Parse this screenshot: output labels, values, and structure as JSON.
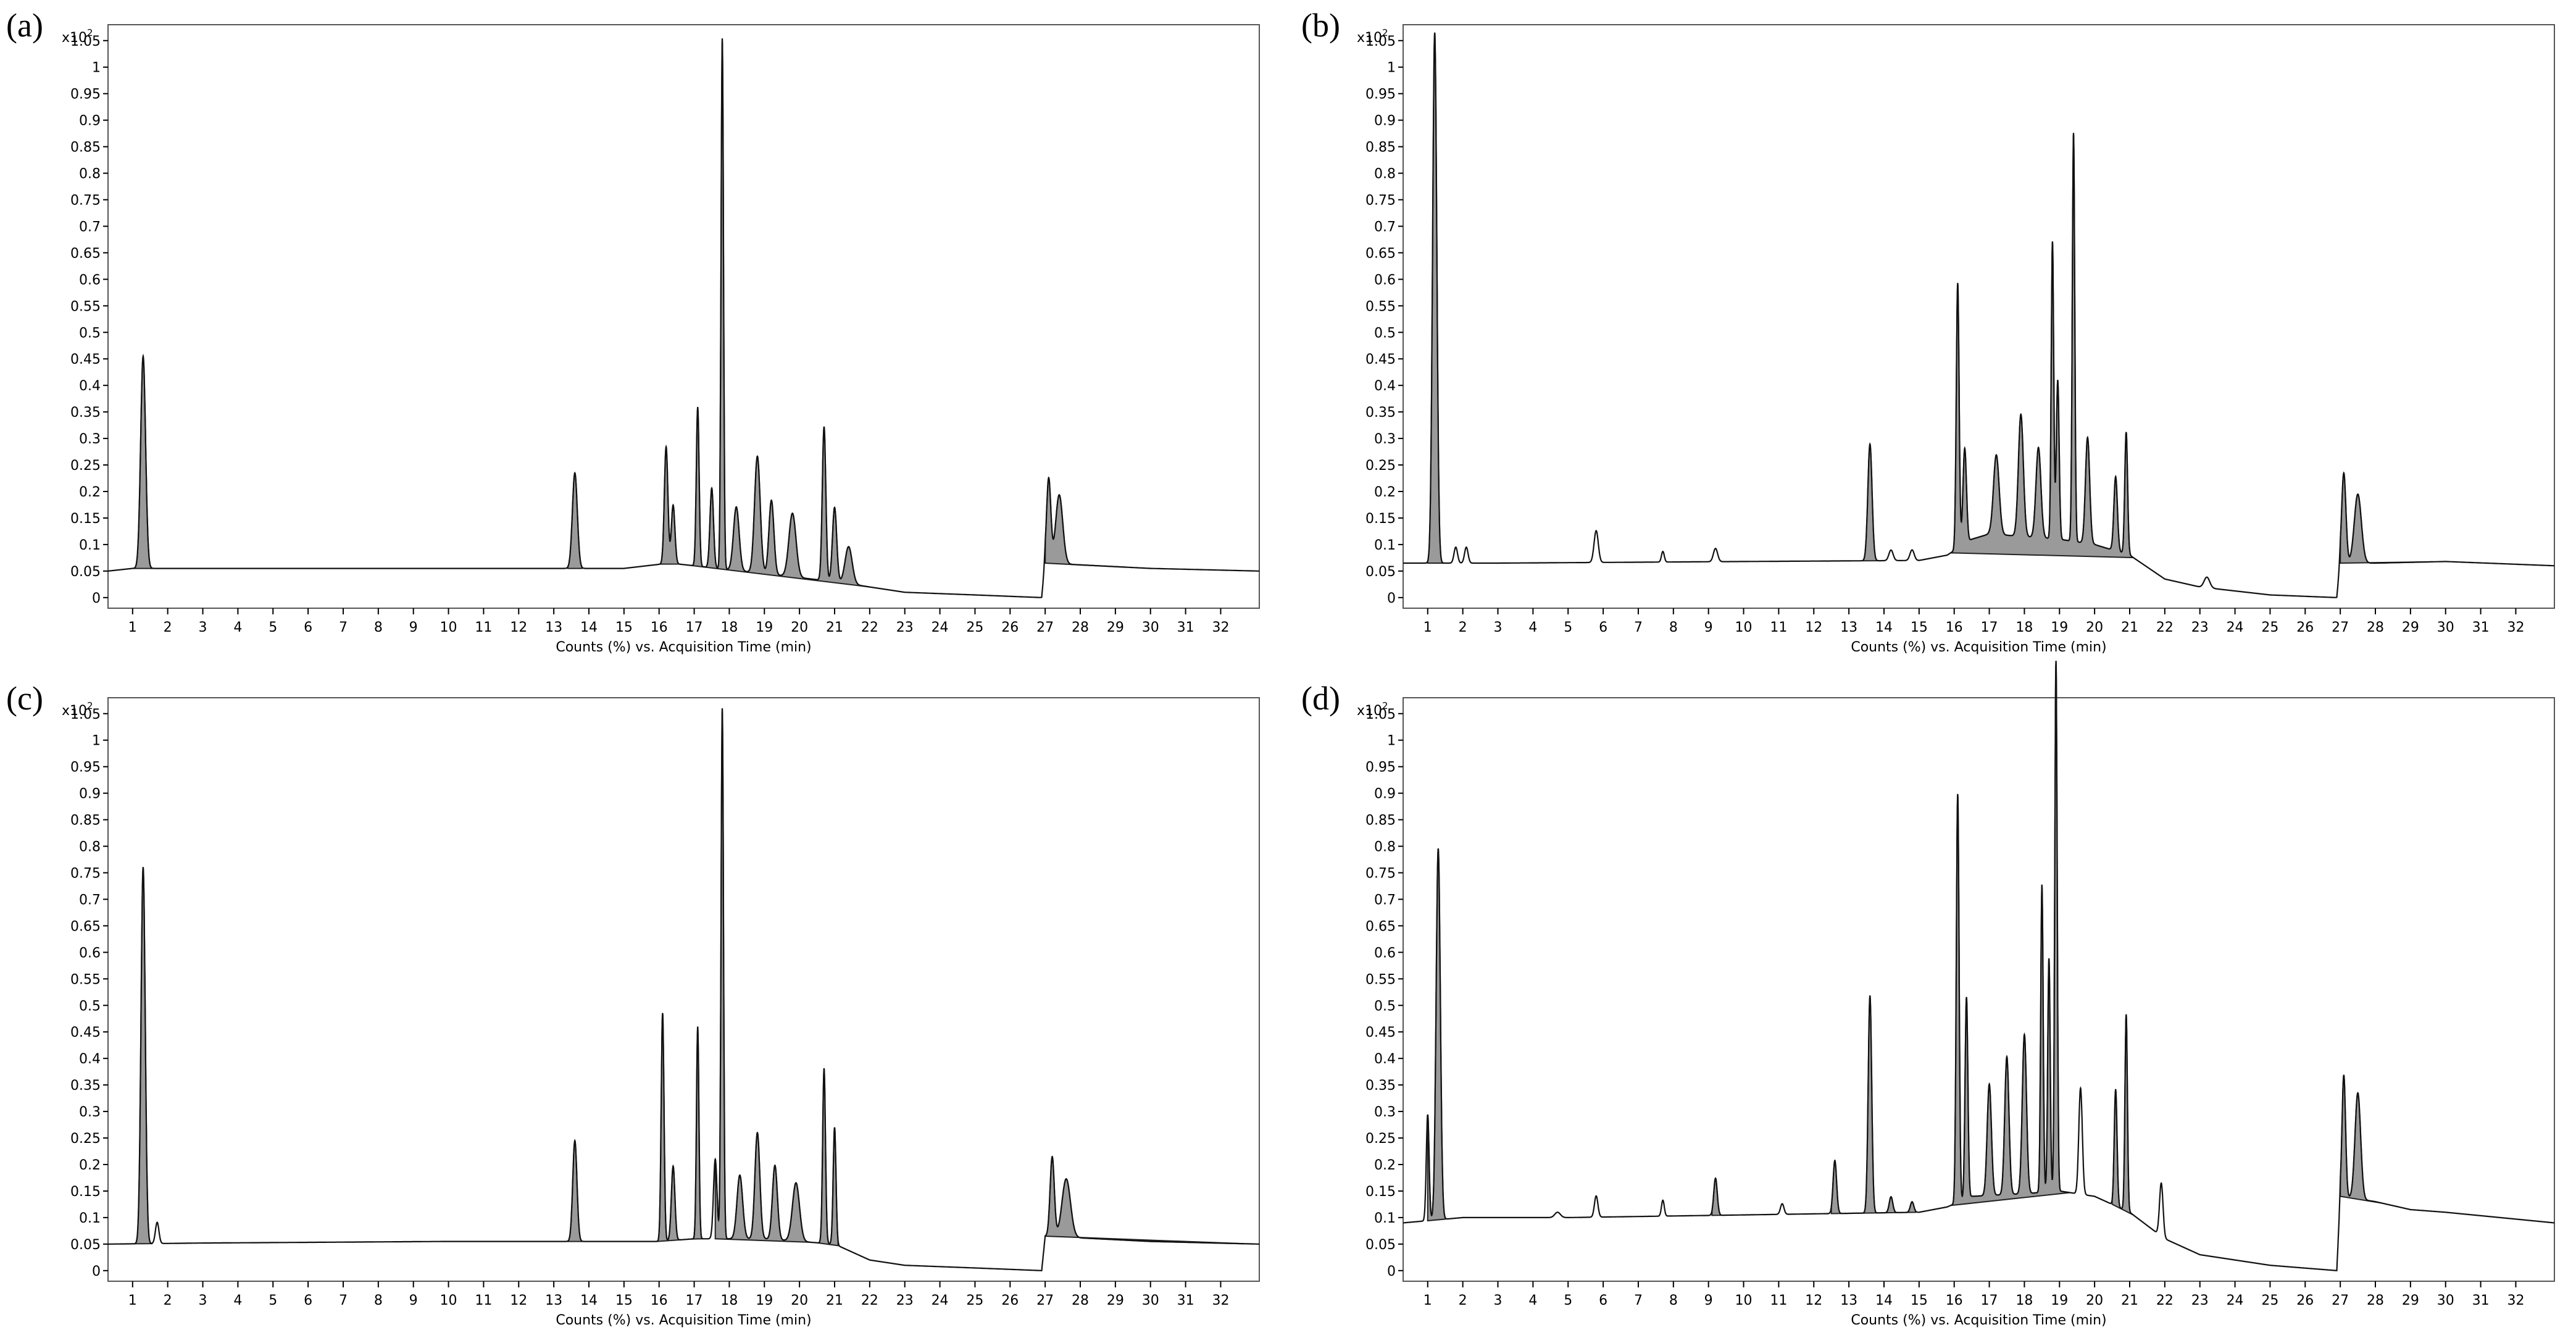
{
  "chart_data": [
    {
      "type": "area",
      "panel_label": "(a)",
      "y_multiplier": "x10",
      "y_multiplier_exp": "2",
      "xlabel": "Counts (%) vs. Acquisition Time (min)",
      "ylabel": "",
      "xlim": [
        0.3,
        33.1
      ],
      "ylim": [
        -0.02,
        1.08
      ],
      "x_ticks": [
        1,
        2,
        3,
        4,
        5,
        6,
        7,
        8,
        9,
        10,
        11,
        12,
        13,
        14,
        15,
        16,
        17,
        18,
        19,
        20,
        21,
        22,
        23,
        24,
        25,
        26,
        27,
        28,
        29,
        30,
        31,
        32
      ],
      "y_ticks": [
        "0",
        "0.05",
        "0.1",
        "0.15",
        "0.2",
        "0.25",
        "0.3",
        "0.35",
        "0.4",
        "0.45",
        "0.5",
        "0.55",
        "0.6",
        "0.65",
        "0.7",
        "0.75",
        "0.8",
        "0.85",
        "0.9",
        "0.95",
        "1",
        "1.05"
      ],
      "baseline": [
        [
          0.3,
          0.05
        ],
        [
          1.0,
          0.055
        ],
        [
          3,
          0.055
        ],
        [
          10,
          0.055
        ],
        [
          15,
          0.055
        ],
        [
          16.3,
          0.065
        ],
        [
          17,
          0.06
        ],
        [
          19,
          0.045
        ],
        [
          21,
          0.03
        ],
        [
          22,
          0.02
        ],
        [
          23,
          0.01
        ],
        [
          25,
          0.005
        ],
        [
          26.9,
          0.0
        ],
        [
          27,
          0.065
        ],
        [
          28.5,
          0.06
        ],
        [
          30,
          0.055
        ],
        [
          33.1,
          0.05
        ]
      ],
      "peaks": [
        {
          "rt": 1.3,
          "h": 0.4,
          "w": 0.07
        },
        {
          "rt": 13.6,
          "h": 0.18,
          "w": 0.07
        },
        {
          "rt": 16.2,
          "h": 0.22,
          "w": 0.05
        },
        {
          "rt": 16.4,
          "h": 0.11,
          "w": 0.05
        },
        {
          "rt": 17.1,
          "h": 0.3,
          "w": 0.04
        },
        {
          "rt": 17.5,
          "h": 0.15,
          "w": 0.05
        },
        {
          "rt": 17.8,
          "h": 1.0,
          "w": 0.035
        },
        {
          "rt": 18.2,
          "h": 0.12,
          "w": 0.08
        },
        {
          "rt": 18.8,
          "h": 0.22,
          "w": 0.08
        },
        {
          "rt": 19.2,
          "h": 0.14,
          "w": 0.07
        },
        {
          "rt": 19.8,
          "h": 0.12,
          "w": 0.1
        },
        {
          "rt": 20.7,
          "h": 0.29,
          "w": 0.05
        },
        {
          "rt": 21.0,
          "h": 0.14,
          "w": 0.06
        },
        {
          "rt": 21.4,
          "h": 0.07,
          "w": 0.1
        },
        {
          "rt": 27.1,
          "h": 0.16,
          "w": 0.06
        },
        {
          "rt": 27.4,
          "h": 0.13,
          "w": 0.1
        }
      ],
      "shaded_regions": [
        [
          1.05,
          1.55
        ],
        [
          13.4,
          13.8
        ],
        [
          16.05,
          16.55
        ],
        [
          16.9,
          22.0
        ],
        [
          27.0,
          29.3
        ]
      ]
    },
    {
      "type": "area",
      "panel_label": "(b)",
      "y_multiplier": "x10",
      "y_multiplier_exp": "2",
      "xlabel": "Counts (%) vs. Acquisition Time (min)",
      "ylabel": "",
      "xlim": [
        0.3,
        33.1
      ],
      "ylim": [
        -0.02,
        1.08
      ],
      "x_ticks": [
        1,
        2,
        3,
        4,
        5,
        6,
        7,
        8,
        9,
        10,
        11,
        12,
        13,
        14,
        15,
        16,
        17,
        18,
        19,
        20,
        21,
        22,
        23,
        24,
        25,
        26,
        27,
        28,
        29,
        30,
        31,
        32
      ],
      "y_ticks": [
        "0",
        "0.05",
        "0.1",
        "0.15",
        "0.2",
        "0.25",
        "0.3",
        "0.35",
        "0.4",
        "0.45",
        "0.5",
        "0.55",
        "0.6",
        "0.65",
        "0.7",
        "0.75",
        "0.8",
        "0.85",
        "0.9",
        "0.95",
        "1",
        "1.05"
      ],
      "baseline": [
        [
          0.3,
          0.065
        ],
        [
          3,
          0.065
        ],
        [
          10,
          0.068
        ],
        [
          15,
          0.07
        ],
        [
          15.8,
          0.08
        ],
        [
          16.5,
          0.11
        ],
        [
          17,
          0.12
        ],
        [
          18,
          0.115
        ],
        [
          19,
          0.11
        ],
        [
          20,
          0.1
        ],
        [
          21,
          0.08
        ],
        [
          22,
          0.035
        ],
        [
          23,
          0.02
        ],
        [
          25,
          0.005
        ],
        [
          26.9,
          0.0
        ],
        [
          27,
          0.065
        ],
        [
          28,
          0.065
        ],
        [
          30,
          0.068
        ],
        [
          33.1,
          0.06
        ]
      ],
      "peaks": [
        {
          "rt": 1.2,
          "h": 1.0,
          "w": 0.06
        },
        {
          "rt": 1.8,
          "h": 0.03,
          "w": 0.05
        },
        {
          "rt": 2.1,
          "h": 0.03,
          "w": 0.05
        },
        {
          "rt": 5.8,
          "h": 0.06,
          "w": 0.06
        },
        {
          "rt": 7.7,
          "h": 0.02,
          "w": 0.04
        },
        {
          "rt": 9.2,
          "h": 0.025,
          "w": 0.06
        },
        {
          "rt": 13.6,
          "h": 0.22,
          "w": 0.06
        },
        {
          "rt": 14.2,
          "h": 0.02,
          "w": 0.06
        },
        {
          "rt": 14.8,
          "h": 0.02,
          "w": 0.06
        },
        {
          "rt": 16.1,
          "h": 0.5,
          "w": 0.04
        },
        {
          "rt": 16.3,
          "h": 0.18,
          "w": 0.05
        },
        {
          "rt": 17.2,
          "h": 0.15,
          "w": 0.08
        },
        {
          "rt": 17.9,
          "h": 0.23,
          "w": 0.07
        },
        {
          "rt": 18.4,
          "h": 0.17,
          "w": 0.07
        },
        {
          "rt": 18.8,
          "h": 0.56,
          "w": 0.035
        },
        {
          "rt": 18.95,
          "h": 0.3,
          "w": 0.04
        },
        {
          "rt": 19.4,
          "h": 0.77,
          "w": 0.035
        },
        {
          "rt": 19.8,
          "h": 0.2,
          "w": 0.06
        },
        {
          "rt": 20.6,
          "h": 0.14,
          "w": 0.05
        },
        {
          "rt": 20.9,
          "h": 0.23,
          "w": 0.04
        },
        {
          "rt": 23.2,
          "h": 0.02,
          "w": 0.08
        },
        {
          "rt": 27.1,
          "h": 0.17,
          "w": 0.06
        },
        {
          "rt": 27.5,
          "h": 0.13,
          "w": 0.1
        }
      ],
      "shaded_regions": [
        [
          1.0,
          1.5
        ],
        [
          13.4,
          13.8
        ],
        [
          15.9,
          21.1
        ],
        [
          27.0,
          29.6
        ]
      ]
    },
    {
      "type": "area",
      "panel_label": "(c)",
      "y_multiplier": "x10",
      "y_multiplier_exp": "2",
      "xlabel": "Counts (%) vs. Acquisition Time (min)",
      "ylabel": "",
      "xlim": [
        0.3,
        33.1
      ],
      "ylim": [
        -0.02,
        1.08
      ],
      "x_ticks": [
        1,
        2,
        3,
        4,
        5,
        6,
        7,
        8,
        9,
        10,
        11,
        12,
        13,
        14,
        15,
        16,
        17,
        18,
        19,
        20,
        21,
        22,
        23,
        24,
        25,
        26,
        27,
        28,
        29,
        30,
        31,
        32
      ],
      "y_ticks": [
        "0",
        "0.05",
        "0.1",
        "0.15",
        "0.2",
        "0.25",
        "0.3",
        "0.35",
        "0.4",
        "0.45",
        "0.5",
        "0.55",
        "0.6",
        "0.65",
        "0.7",
        "0.75",
        "0.8",
        "0.85",
        "0.9",
        "0.95",
        "1",
        "1.05"
      ],
      "baseline": [
        [
          0.3,
          0.05
        ],
        [
          3,
          0.052
        ],
        [
          10,
          0.055
        ],
        [
          15,
          0.055
        ],
        [
          16,
          0.055
        ],
        [
          17,
          0.06
        ],
        [
          19,
          0.06
        ],
        [
          21,
          0.05
        ],
        [
          22,
          0.02
        ],
        [
          23,
          0.01
        ],
        [
          25,
          0.005
        ],
        [
          26.9,
          0.0
        ],
        [
          27,
          0.065
        ],
        [
          28.5,
          0.06
        ],
        [
          30,
          0.055
        ],
        [
          33.1,
          0.05
        ]
      ],
      "peaks": [
        {
          "rt": 1.3,
          "h": 0.71,
          "w": 0.06
        },
        {
          "rt": 1.7,
          "h": 0.04,
          "w": 0.05
        },
        {
          "rt": 13.6,
          "h": 0.19,
          "w": 0.06
        },
        {
          "rt": 16.1,
          "h": 0.43,
          "w": 0.04
        },
        {
          "rt": 16.4,
          "h": 0.14,
          "w": 0.05
        },
        {
          "rt": 17.1,
          "h": 0.4,
          "w": 0.035
        },
        {
          "rt": 17.6,
          "h": 0.15,
          "w": 0.05
        },
        {
          "rt": 17.8,
          "h": 1.0,
          "w": 0.035
        },
        {
          "rt": 18.3,
          "h": 0.12,
          "w": 0.08
        },
        {
          "rt": 18.8,
          "h": 0.2,
          "w": 0.07
        },
        {
          "rt": 19.3,
          "h": 0.14,
          "w": 0.07
        },
        {
          "rt": 19.9,
          "h": 0.11,
          "w": 0.1
        },
        {
          "rt": 20.7,
          "h": 0.33,
          "w": 0.04
        },
        {
          "rt": 21.0,
          "h": 0.22,
          "w": 0.04
        },
        {
          "rt": 27.2,
          "h": 0.15,
          "w": 0.06
        },
        {
          "rt": 27.6,
          "h": 0.11,
          "w": 0.12
        }
      ],
      "shaded_regions": [
        [
          1.05,
          1.55
        ],
        [
          13.4,
          13.8
        ],
        [
          15.95,
          16.6
        ],
        [
          16.9,
          17.25
        ],
        [
          17.6,
          20.3
        ],
        [
          20.5,
          21.1
        ],
        [
          27.0,
          32.7
        ]
      ]
    },
    {
      "type": "area",
      "panel_label": "(d)",
      "y_multiplier": "x10",
      "y_multiplier_exp": "2",
      "xlabel": "Counts (%) vs. Acquisition Time (min)",
      "ylabel": "",
      "xlim": [
        0.3,
        33.1
      ],
      "ylim": [
        -0.02,
        1.08
      ],
      "x_ticks": [
        1,
        2,
        3,
        4,
        5,
        6,
        7,
        8,
        9,
        10,
        11,
        12,
        13,
        14,
        15,
        16,
        17,
        18,
        19,
        20,
        21,
        22,
        23,
        24,
        25,
        26,
        27,
        28,
        29,
        30,
        31,
        32
      ],
      "y_ticks": [
        "0",
        "0.05",
        "0.1",
        "0.15",
        "0.2",
        "0.25",
        "0.3",
        "0.35",
        "0.4",
        "0.45",
        "0.5",
        "0.55",
        "0.6",
        "0.65",
        "0.7",
        "0.75",
        "0.8",
        "0.85",
        "0.9",
        "0.95",
        "1",
        "1.05"
      ],
      "baseline": [
        [
          0.3,
          0.09
        ],
        [
          2,
          0.1
        ],
        [
          5,
          0.1
        ],
        [
          10,
          0.105
        ],
        [
          15,
          0.11
        ],
        [
          15.8,
          0.12
        ],
        [
          16.5,
          0.14
        ],
        [
          18,
          0.145
        ],
        [
          19,
          0.15
        ],
        [
          20,
          0.14
        ],
        [
          21,
          0.11
        ],
        [
          22,
          0.06
        ],
        [
          23,
          0.03
        ],
        [
          25,
          0.01
        ],
        [
          26.9,
          0.0
        ],
        [
          27,
          0.14
        ],
        [
          28,
          0.13
        ],
        [
          29,
          0.115
        ],
        [
          30,
          0.11
        ],
        [
          33.1,
          0.09
        ]
      ],
      "peaks": [
        {
          "rt": 1.0,
          "h": 0.2,
          "w": 0.04
        },
        {
          "rt": 1.3,
          "h": 0.7,
          "w": 0.06
        },
        {
          "rt": 4.7,
          "h": 0.01,
          "w": 0.08
        },
        {
          "rt": 5.8,
          "h": 0.04,
          "w": 0.05
        },
        {
          "rt": 7.7,
          "h": 0.03,
          "w": 0.04
        },
        {
          "rt": 9.2,
          "h": 0.07,
          "w": 0.05
        },
        {
          "rt": 11.1,
          "h": 0.02,
          "w": 0.05
        },
        {
          "rt": 12.6,
          "h": 0.1,
          "w": 0.05
        },
        {
          "rt": 13.6,
          "h": 0.41,
          "w": 0.05
        },
        {
          "rt": 14.2,
          "h": 0.03,
          "w": 0.05
        },
        {
          "rt": 14.8,
          "h": 0.02,
          "w": 0.05
        },
        {
          "rt": 16.1,
          "h": 0.77,
          "w": 0.04
        },
        {
          "rt": 16.35,
          "h": 0.38,
          "w": 0.04
        },
        {
          "rt": 17.0,
          "h": 0.21,
          "w": 0.06
        },
        {
          "rt": 17.5,
          "h": 0.26,
          "w": 0.06
        },
        {
          "rt": 18.0,
          "h": 0.3,
          "w": 0.06
        },
        {
          "rt": 18.5,
          "h": 0.58,
          "w": 0.035
        },
        {
          "rt": 18.7,
          "h": 0.44,
          "w": 0.035
        },
        {
          "rt": 18.9,
          "h": 1.0,
          "w": 0.035
        },
        {
          "rt": 19.6,
          "h": 0.2,
          "w": 0.05
        },
        {
          "rt": 20.6,
          "h": 0.22,
          "w": 0.04
        },
        {
          "rt": 20.9,
          "h": 0.37,
          "w": 0.035
        },
        {
          "rt": 21.9,
          "h": 0.1,
          "w": 0.05
        },
        {
          "rt": 27.1,
          "h": 0.23,
          "w": 0.05
        },
        {
          "rt": 27.5,
          "h": 0.2,
          "w": 0.08
        }
      ],
      "shaded_regions": [
        [
          1.0,
          1.5
        ],
        [
          9.1,
          9.35
        ],
        [
          12.5,
          14.9
        ],
        [
          15.9,
          19.3
        ],
        [
          20.5,
          21.1
        ],
        [
          27.0,
          28.2
        ]
      ]
    }
  ]
}
